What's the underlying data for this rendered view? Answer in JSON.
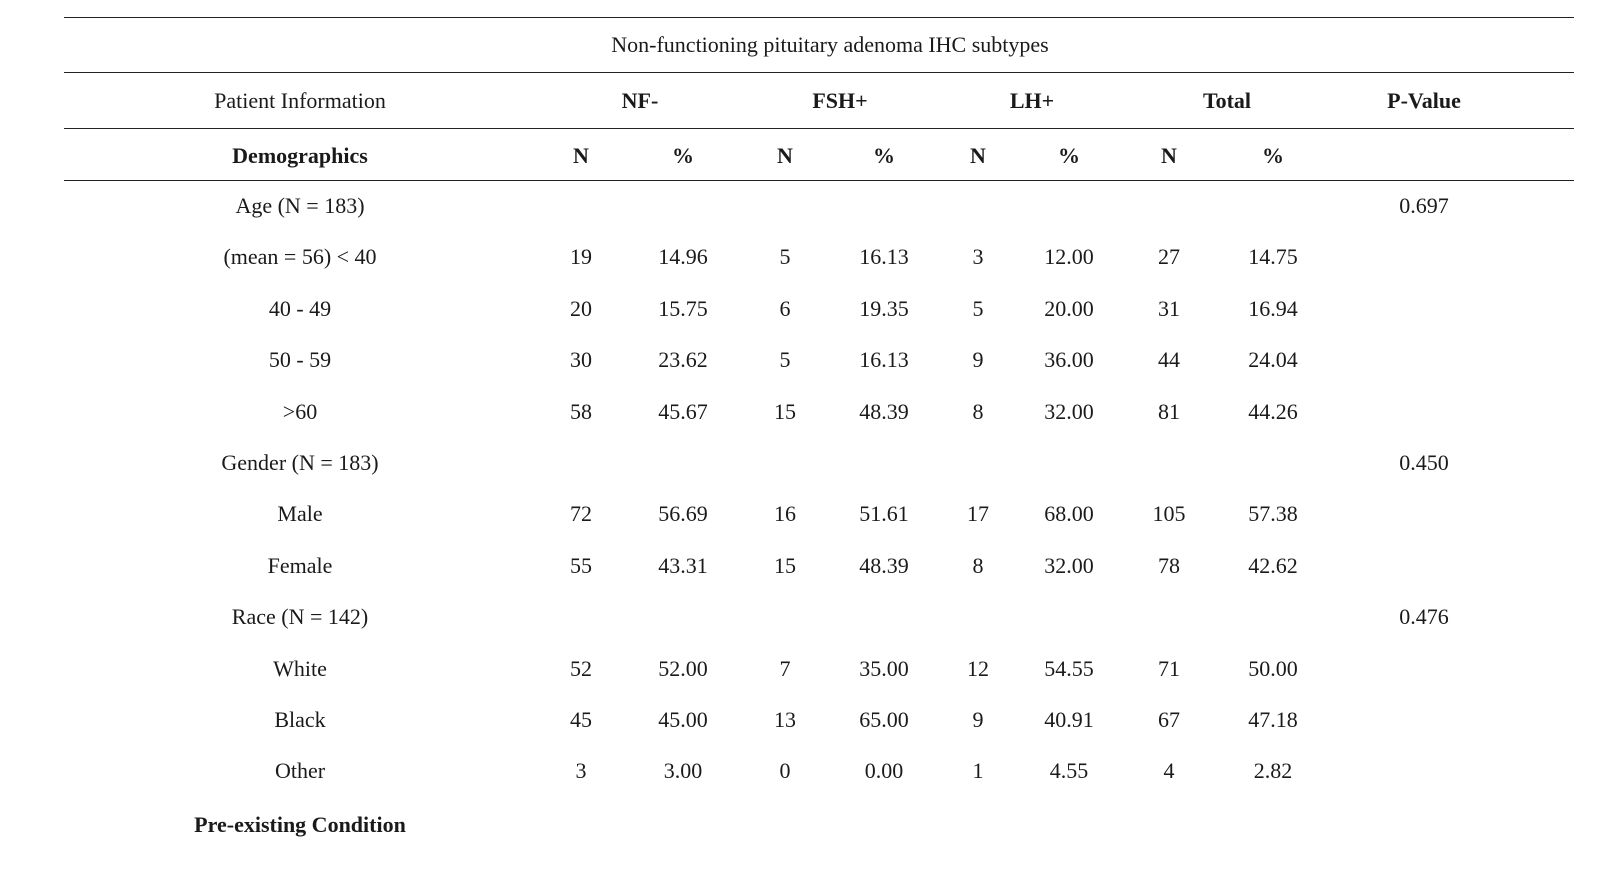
{
  "table": {
    "title": "Non-functioning pituitary adenoma IHC subtypes",
    "header": {
      "patient_info": "Patient Information",
      "groups": [
        "NF-",
        "FSH+",
        "LH+",
        "Total"
      ],
      "pvalue": "P-Value"
    },
    "subheader": {
      "demographics": "Demographics",
      "n": "N",
      "pct": "%"
    },
    "rows": [
      {
        "label": "Age (N = 183)",
        "values": [
          "",
          "",
          "",
          "",
          "",
          "",
          "",
          ""
        ],
        "p": "0.697"
      },
      {
        "label": "(mean = 56) < 40",
        "values": [
          "19",
          "14.96",
          "5",
          "16.13",
          "3",
          "12.00",
          "27",
          "14.75"
        ],
        "p": ""
      },
      {
        "label": "40 - 49",
        "values": [
          "20",
          "15.75",
          "6",
          "19.35",
          "5",
          "20.00",
          "31",
          "16.94"
        ],
        "p": ""
      },
      {
        "label": "50 - 59",
        "values": [
          "30",
          "23.62",
          "5",
          "16.13",
          "9",
          "36.00",
          "44",
          "24.04"
        ],
        "p": ""
      },
      {
        "label": ">60",
        "values": [
          "58",
          "45.67",
          "15",
          "48.39",
          "8",
          "32.00",
          "81",
          "44.26"
        ],
        "p": ""
      },
      {
        "label": "Gender (N = 183)",
        "values": [
          "",
          "",
          "",
          "",
          "",
          "",
          "",
          ""
        ],
        "p": "0.450"
      },
      {
        "label": "Male",
        "values": [
          "72",
          "56.69",
          "16",
          "51.61",
          "17",
          "68.00",
          "105",
          "57.38"
        ],
        "p": ""
      },
      {
        "label": "Female",
        "values": [
          "55",
          "43.31",
          "15",
          "48.39",
          "8",
          "32.00",
          "78",
          "42.62"
        ],
        "p": ""
      },
      {
        "label": "Race (N = 142)",
        "values": [
          "",
          "",
          "",
          "",
          "",
          "",
          "",
          ""
        ],
        "p": "0.476"
      },
      {
        "label": "White",
        "values": [
          "52",
          "52.00",
          "7",
          "35.00",
          "12",
          "54.55",
          "71",
          "50.00"
        ],
        "p": ""
      },
      {
        "label": "Black",
        "values": [
          "45",
          "45.00",
          "13",
          "65.00",
          "9",
          "40.91",
          "67",
          "47.18"
        ],
        "p": ""
      },
      {
        "label": "Other",
        "values": [
          "3",
          "3.00",
          "0",
          "0.00",
          "1",
          "4.55",
          "4",
          "2.82"
        ],
        "p": ""
      }
    ],
    "footer_section": "Pre-existing Condition"
  }
}
